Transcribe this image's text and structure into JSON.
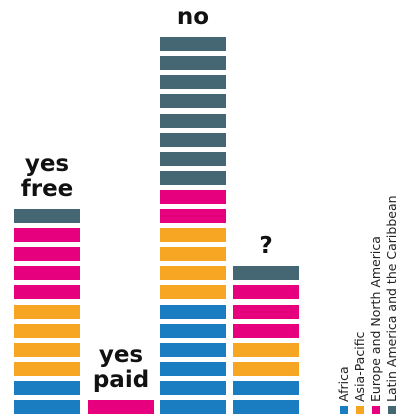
{
  "chart_data": {
    "type": "unit-stack",
    "categories": [
      "yes free",
      "yes paid",
      "no",
      "?"
    ],
    "series": [
      {
        "name": "Africa",
        "color": "#1a7dc2",
        "values": [
          2,
          0,
          6,
          2
        ]
      },
      {
        "name": "Asia-Pacific",
        "color": "#f6a623",
        "values": [
          4,
          0,
          4,
          2
        ]
      },
      {
        "name": "Europe and North America",
        "color": "#e6007e",
        "values": [
          4,
          1,
          2,
          3
        ]
      },
      {
        "name": "Latin America and the Caribbean",
        "color": "#456774",
        "values": [
          1,
          0,
          8,
          1
        ]
      }
    ]
  }
}
